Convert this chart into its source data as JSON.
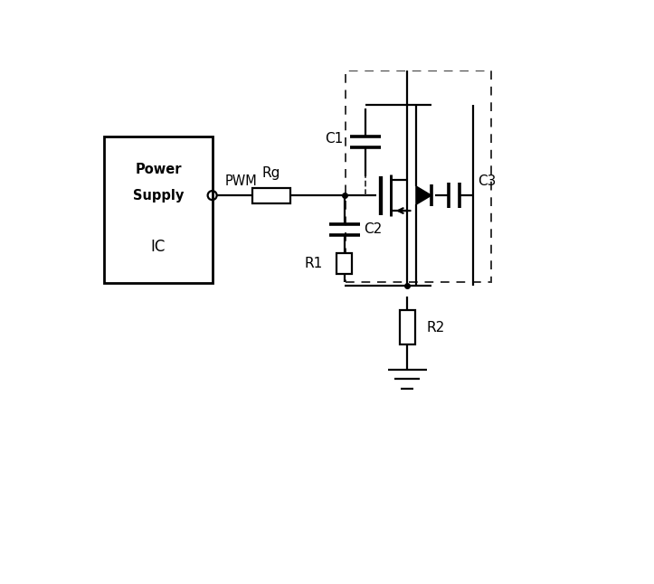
{
  "bg_color": "#ffffff",
  "line_color": "#000000",
  "fig_width": 7.23,
  "fig_height": 6.46,
  "dpi": 100,
  "power_supply_label1": "Power",
  "power_supply_label2": "Supply",
  "power_supply_label3": "IC",
  "pwm_label": "PWM",
  "rg_label": "Rg",
  "c1_label": "C1",
  "c2_label": "C2",
  "c3_label": "C3",
  "r1_label": "R1",
  "r2_label": "R2"
}
